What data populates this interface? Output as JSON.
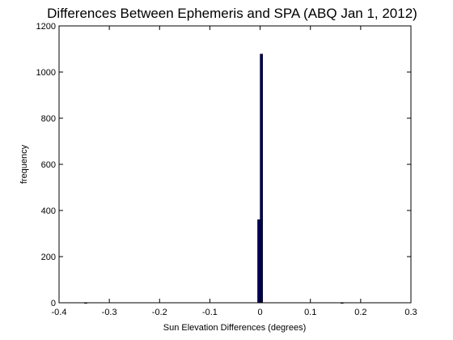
{
  "chart_data": {
    "type": "bar",
    "title": "Differences Between Ephemeris and SPA (ABQ Jan 1, 2012)",
    "xlabel": "Sun Elevation Differences (degrees)",
    "ylabel": "frequency",
    "xlim": [
      -0.4,
      0.3
    ],
    "ylim": [
      0,
      1200
    ],
    "xticks": [
      -0.4,
      -0.3,
      -0.2,
      -0.1,
      0,
      0.1,
      0.2,
      0.3
    ],
    "xtick_labels": [
      "-0.4",
      "-0.3",
      "-0.2",
      "-0.1",
      "0",
      "0.1",
      "0.2",
      "0.3"
    ],
    "yticks": [
      0,
      200,
      400,
      600,
      800,
      1000,
      1200
    ],
    "ytick_labels": [
      "0",
      "200",
      "400",
      "600",
      "800",
      "1000",
      "1200"
    ],
    "bin_width": 0.0051,
    "bins": [
      {
        "x": -0.347,
        "count": 1
      },
      {
        "x": -0.0025,
        "count": 360
      },
      {
        "x": 0.0025,
        "count": 1078
      },
      {
        "x": 0.163,
        "count": 1
      }
    ],
    "bar_color": "#00005c",
    "grid": false
  }
}
